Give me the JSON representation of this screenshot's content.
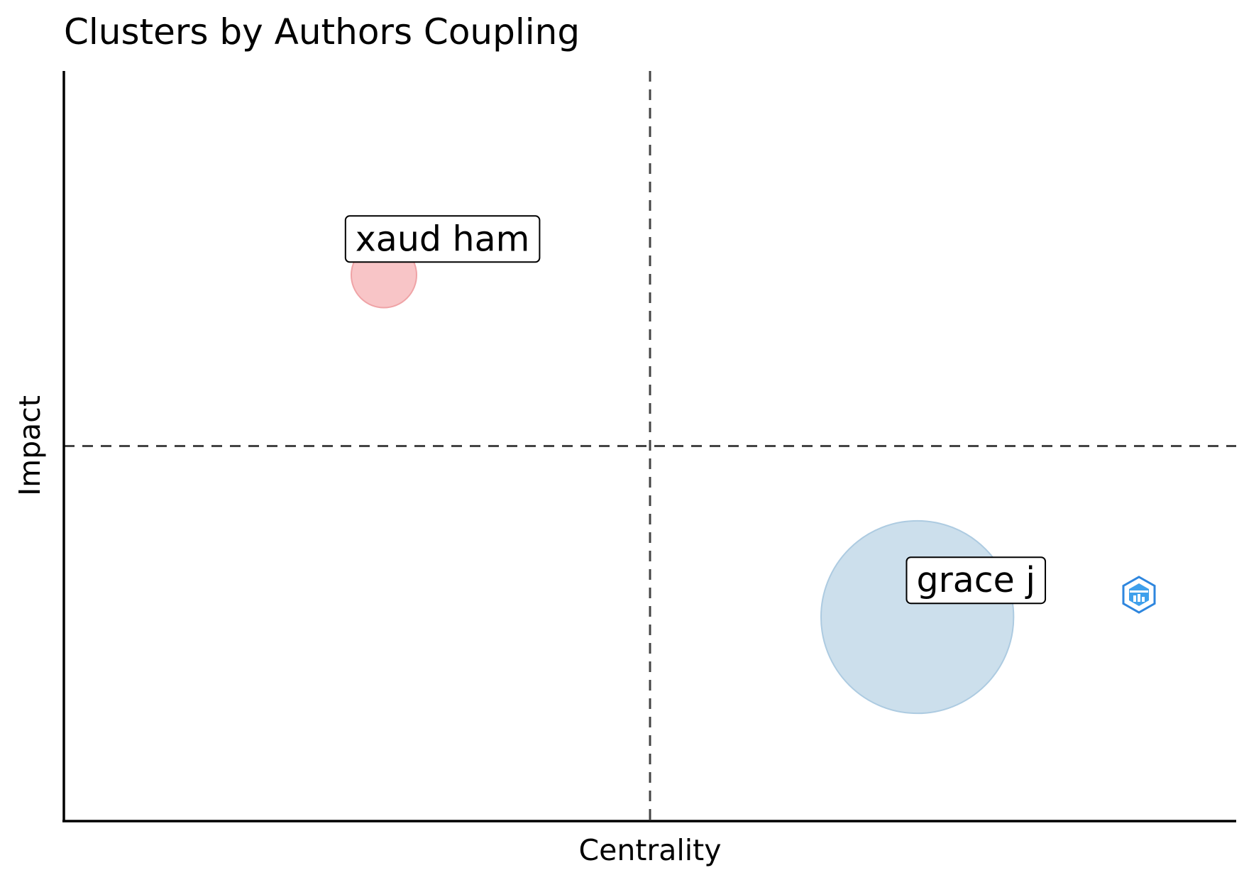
{
  "chart_data": {
    "type": "scatter",
    "title": "Clusters by Authors Coupling",
    "xlabel": "Centrality",
    "ylabel": "Impact",
    "xlim": [
      0,
      1
    ],
    "ylim": [
      0,
      1
    ],
    "x_reference_line": 0.5,
    "y_reference_line": 0.5,
    "reference_line_style": "dashed",
    "grid": false,
    "axis_ticks": false,
    "legend": "none",
    "points": [
      {
        "label": "xaud ham",
        "x": 0.273,
        "y": 0.728,
        "size": 1,
        "color": "#F8C5C7",
        "stroke": "#EFA3A6",
        "label_dx": 0.05,
        "label_dy": 0.048
      },
      {
        "label": "grace j",
        "x": 0.728,
        "y": 0.272,
        "size": 8.7,
        "color": "#CCDFEC",
        "stroke": "#ADCBE1",
        "label_dx": 0.05,
        "label_dy": 0.049
      }
    ]
  },
  "logo": {
    "name": "bibliometrix-logo-icon",
    "color": "#2E86DE"
  }
}
